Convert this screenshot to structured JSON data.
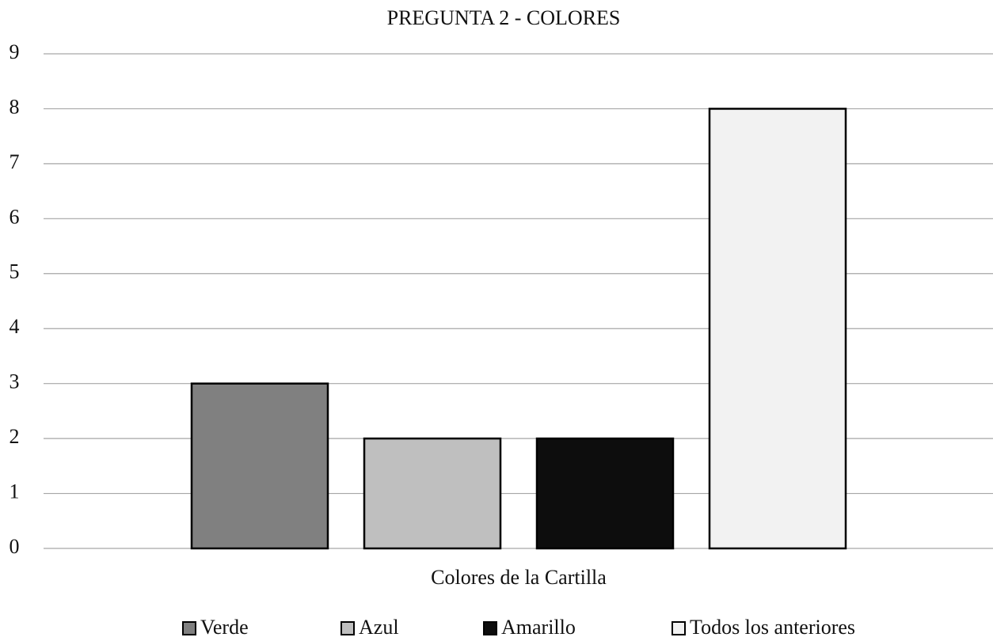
{
  "chart_data": {
    "type": "bar",
    "title": "PREGUNTA 2 - COLORES",
    "x_label": "Colores de la Cartilla",
    "series": [
      {
        "name": "Verde",
        "color": "#808080",
        "values": [
          3
        ]
      },
      {
        "name": "Azul",
        "color": "#bfbfbf",
        "values": [
          2
        ]
      },
      {
        "name": "Amarillo",
        "color": "#0d0d0d",
        "values": [
          2
        ]
      },
      {
        "name": "Todos los anteriores",
        "color": "#f2f2f2",
        "values": [
          8
        ]
      }
    ],
    "ylim": [
      0,
      9
    ],
    "yticks": [
      0,
      1,
      2,
      3,
      4,
      5,
      6,
      7,
      8,
      9
    ],
    "grid": true,
    "legend": "bottom"
  }
}
